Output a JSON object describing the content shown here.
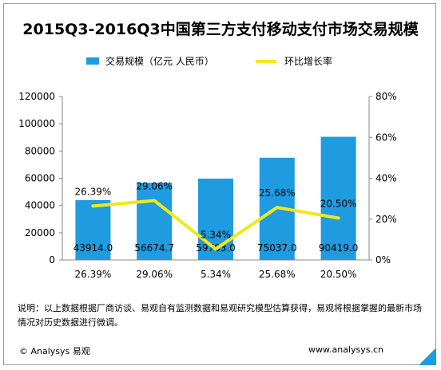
{
  "title": "2015Q3-2016Q3中国第三方支付移动支付市场交易规模",
  "legend": {
    "bar_label": "交易规模（亿元 人民币）",
    "line_label": "环比增长率"
  },
  "colors": {
    "bar": "#1f9be0",
    "line": "#f2e81a",
    "axis": "#888888"
  },
  "chart_data": {
    "type": "bar",
    "categories": [
      "",
      "",
      "",
      "",
      ""
    ],
    "series": [
      {
        "name": "交易规模（亿元 人民币）",
        "type": "bar",
        "axis": "left",
        "values": [
          43914.0,
          56674.7,
          59703.0,
          75037.0,
          90419.0
        ],
        "labels": [
          "43914.0",
          "56674.7",
          "59703.0",
          "75037.0",
          "90419.0"
        ]
      },
      {
        "name": "环比增长率",
        "type": "line",
        "axis": "right",
        "values": [
          26.39,
          29.06,
          5.34,
          25.68,
          20.5
        ],
        "labels": [
          "26.39%",
          "29.06%",
          "5.34%",
          "25.68%",
          "20.50%"
        ]
      }
    ],
    "category_row_labels": [
      "26.39%",
      "29.06%",
      "5.34%",
      "25.68%",
      "20.50%"
    ],
    "ylim_left": [
      0,
      120000
    ],
    "yticks_left": [
      "0",
      "20000",
      "40000",
      "60000",
      "80000",
      "100000",
      "120000"
    ],
    "ylim_right": [
      0,
      80
    ],
    "yticks_right": [
      "0%",
      "20%",
      "40%",
      "60%",
      "80%"
    ],
    "grid": false,
    "legend_position": "top"
  },
  "note": "说明：以上数据根据厂商访谈、易观自有监测数据和易观研究模型估算获得，易观将根据掌握的最新市场情况对历史数据进行微调。",
  "footer": {
    "left": "© Analysys 易观",
    "right": "www.analysys.cn"
  }
}
